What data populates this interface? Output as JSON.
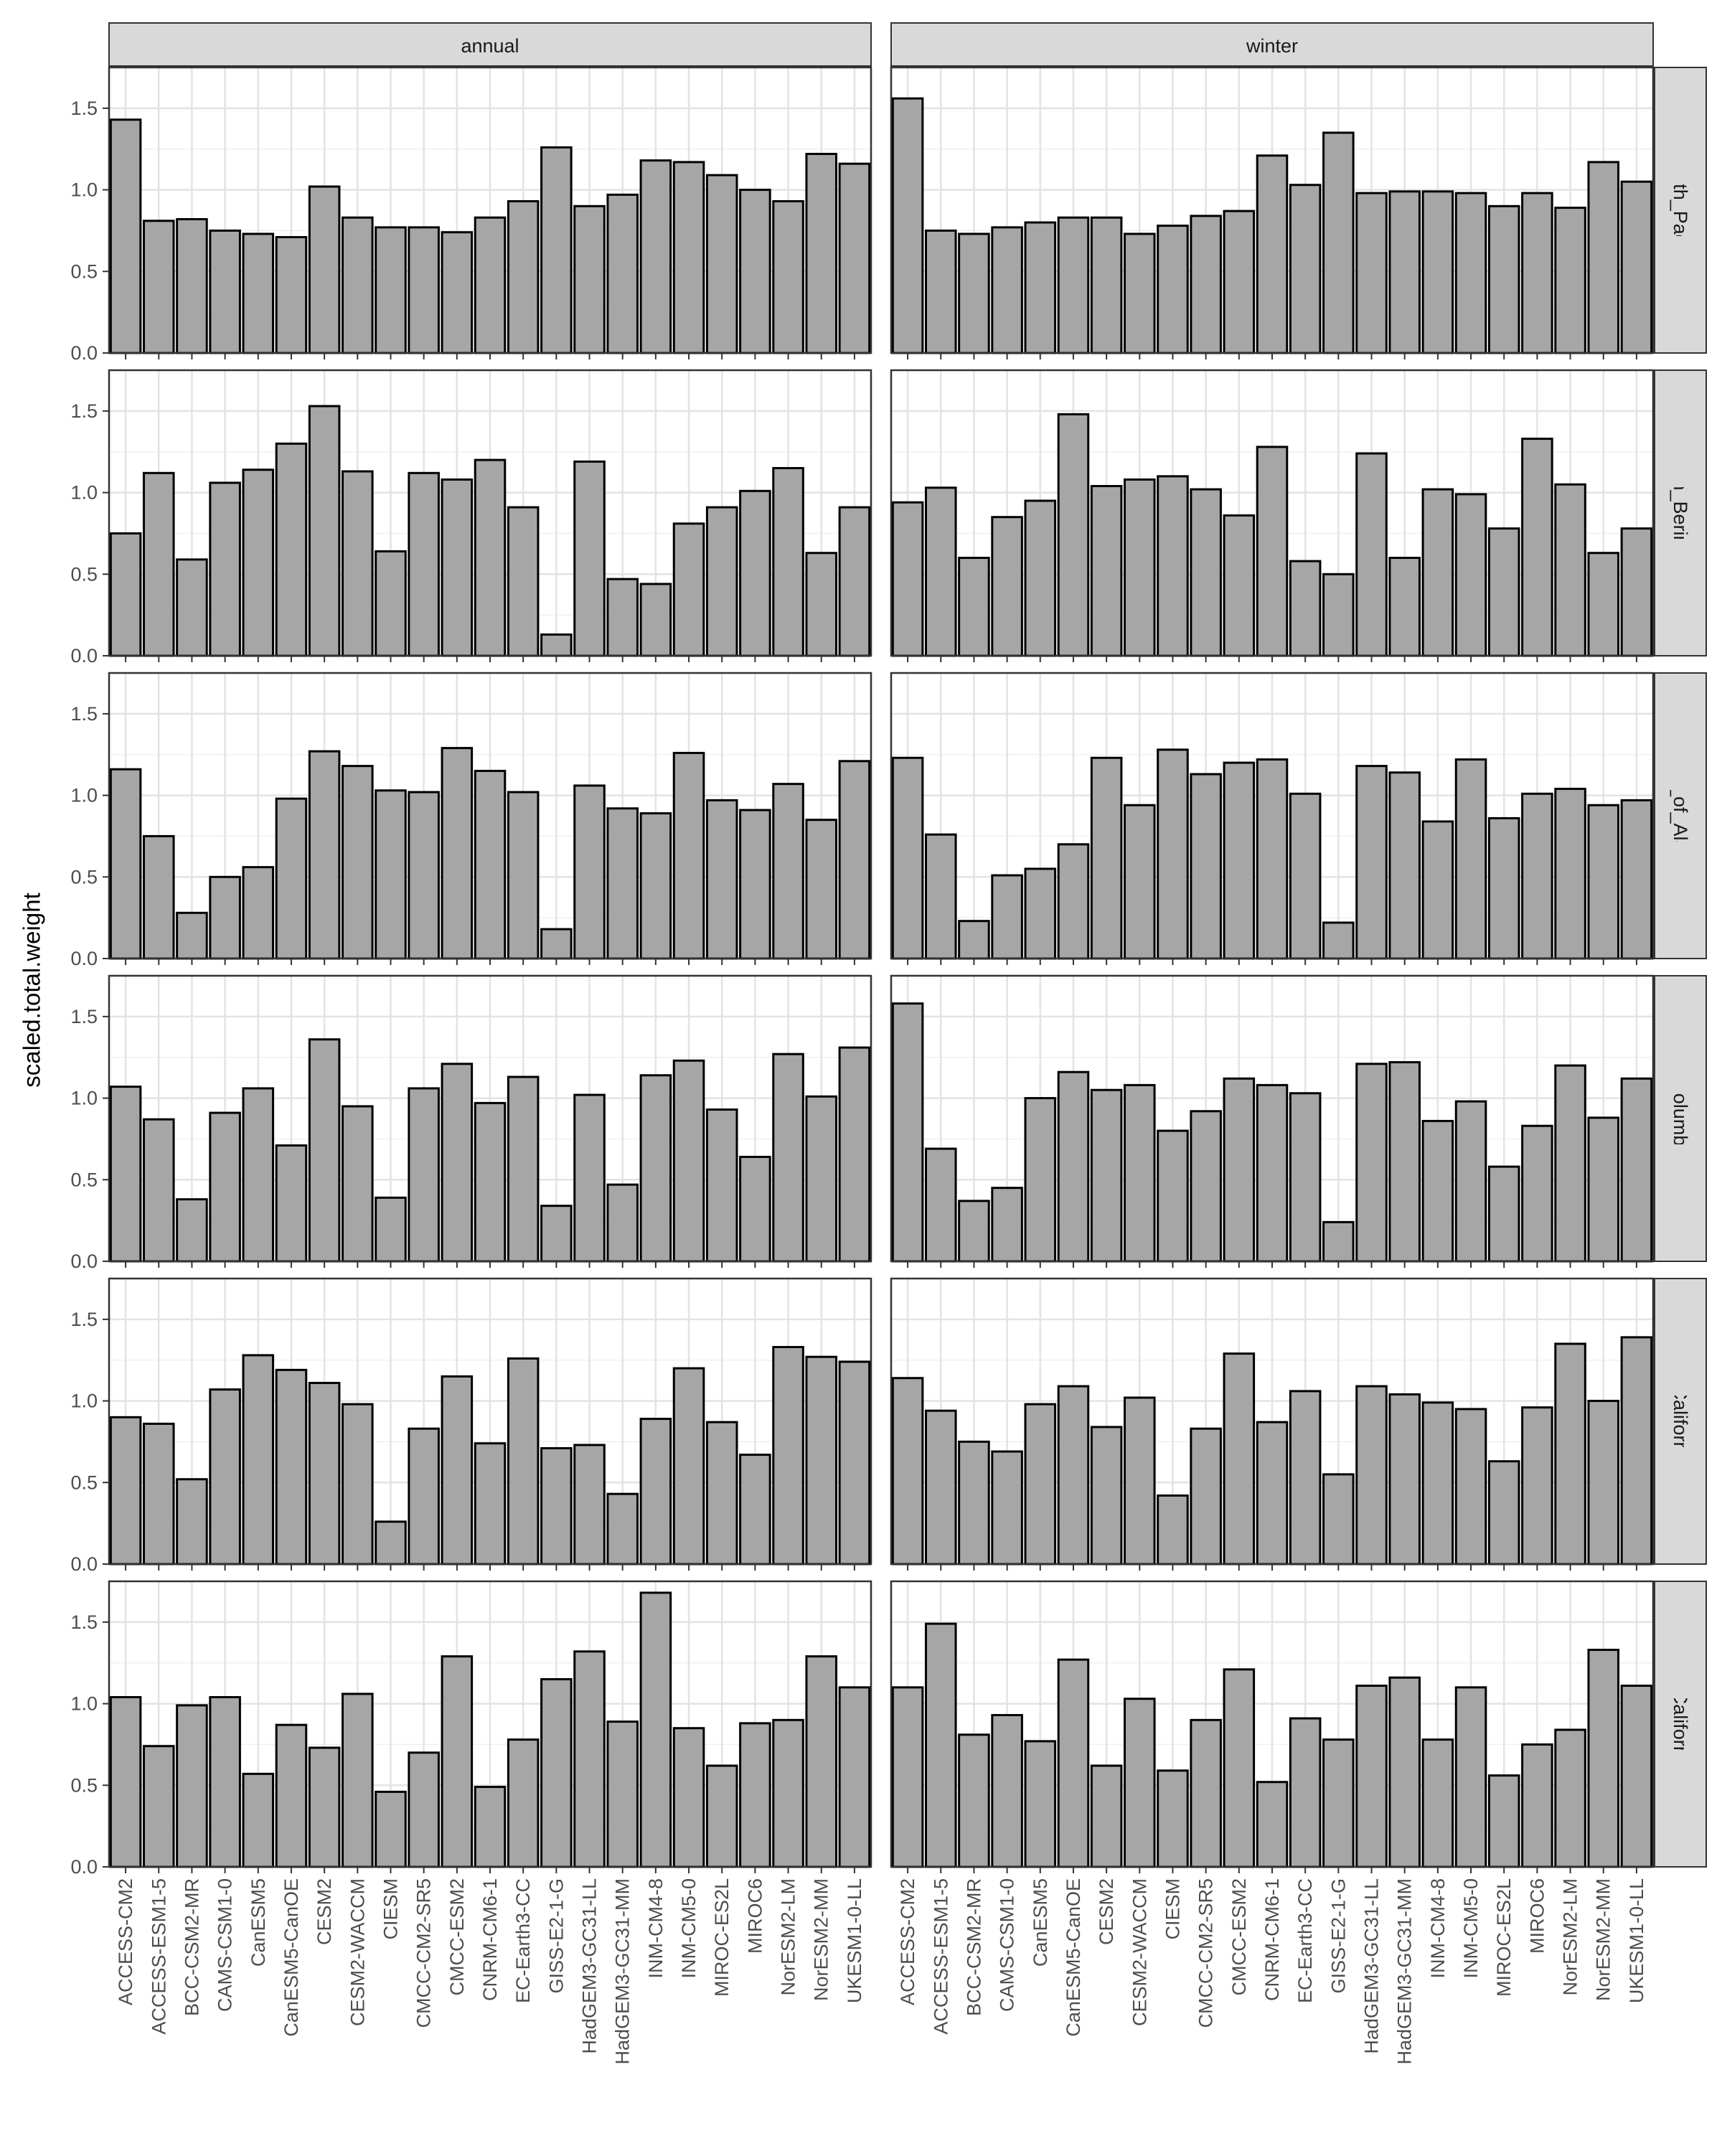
{
  "chart_data": {
    "type": "bar",
    "ylabel": "scaled.total.weight",
    "xlabel": "",
    "ylim": [
      0,
      1.75
    ],
    "yticks": [
      0.0,
      0.5,
      1.0,
      1.5
    ],
    "ytick_labels": [
      "0.0",
      "0.5",
      "1.0",
      "1.5"
    ],
    "grid": true,
    "bar_fill": "#a6a6a6",
    "bar_stroke": "#000000",
    "strip_fill": "#d9d9d9",
    "columns": [
      "annual",
      "winter"
    ],
    "rows": [
      "North_Pacific",
      "Eastern_Bering_Sea",
      "Gulf_of_Alaska",
      "British_Columbia_Coast",
      "Northern_California_Current",
      "Southern_California_Current"
    ],
    "categories": [
      "ACCESS-CM2",
      "ACCESS-ESM1-5",
      "BCC-CSM2-MR",
      "CAMS-CSM1-0",
      "CanESM5",
      "CanESM5-CanOE",
      "CESM2",
      "CESM2-WACCM",
      "CIESM",
      "CMCC-CM2-SR5",
      "CMCC-ESM2",
      "CNRM-CM6-1",
      "EC-Earth3-CC",
      "GISS-E2-1-G",
      "HadGEM3-GC31-LL",
      "HadGEM3-GC31-MM",
      "INM-CM4-8",
      "INM-CM5-0",
      "MIROC-ES2L",
      "MIROC6",
      "NorESM2-LM",
      "NorESM2-MM",
      "UKESM1-0-LL"
    ],
    "values": {
      "annual": [
        [
          1.43,
          0.81,
          0.82,
          0.75,
          0.73,
          0.71,
          1.02,
          0.83,
          0.77,
          0.77,
          0.74,
          0.83,
          0.93,
          1.26,
          0.9,
          0.97,
          1.18,
          1.17,
          1.09,
          1.0,
          0.93,
          1.22,
          1.16
        ],
        [
          0.75,
          1.12,
          0.59,
          1.06,
          1.14,
          1.3,
          1.53,
          1.13,
          0.64,
          1.12,
          1.08,
          1.2,
          0.91,
          0.13,
          1.19,
          0.47,
          0.44,
          0.81,
          0.91,
          1.01,
          1.15,
          0.63,
          0.91
        ],
        [
          1.16,
          0.75,
          0.28,
          0.5,
          0.56,
          0.98,
          1.27,
          1.18,
          1.03,
          1.02,
          1.29,
          1.15,
          1.02,
          0.18,
          1.06,
          0.92,
          0.89,
          1.26,
          0.97,
          0.91,
          1.07,
          0.85,
          1.21
        ],
        [
          1.07,
          0.87,
          0.38,
          0.91,
          1.06,
          0.71,
          1.36,
          0.95,
          0.39,
          1.06,
          1.21,
          0.97,
          1.13,
          0.34,
          1.02,
          0.47,
          1.14,
          1.23,
          0.93,
          0.64,
          1.27,
          1.01,
          1.31
        ],
        [
          0.9,
          0.86,
          0.52,
          1.07,
          1.28,
          1.19,
          1.11,
          0.98,
          0.26,
          0.83,
          1.15,
          0.74,
          1.26,
          0.71,
          0.73,
          0.43,
          0.89,
          1.2,
          0.87,
          0.67,
          1.33,
          1.27,
          1.24
        ],
        [
          1.04,
          0.74,
          0.99,
          1.04,
          0.57,
          0.87,
          0.73,
          1.06,
          0.46,
          0.7,
          1.29,
          0.49,
          0.78,
          1.15,
          1.32,
          0.89,
          1.68,
          0.85,
          0.62,
          0.88,
          0.9,
          1.29,
          1.1
        ]
      ],
      "winter": [
        [
          1.56,
          0.75,
          0.73,
          0.77,
          0.8,
          0.83,
          0.83,
          0.73,
          0.78,
          0.84,
          0.87,
          1.21,
          1.03,
          1.35,
          0.98,
          0.99,
          0.99,
          0.98,
          0.9,
          0.98,
          0.89,
          1.17,
          1.05
        ],
        [
          0.94,
          1.03,
          0.6,
          0.85,
          0.95,
          1.48,
          1.04,
          1.08,
          1.1,
          1.02,
          0.86,
          1.28,
          0.58,
          0.5,
          1.24,
          0.6,
          1.02,
          0.99,
          0.78,
          1.33,
          1.05,
          0.63,
          0.78
        ],
        [
          1.23,
          0.76,
          0.23,
          0.51,
          0.55,
          0.7,
          1.23,
          0.94,
          1.28,
          1.13,
          1.2,
          1.22,
          1.01,
          0.22,
          1.18,
          1.14,
          0.84,
          1.22,
          0.86,
          1.01,
          1.04,
          0.94,
          0.97
        ],
        [
          1.58,
          0.69,
          0.37,
          0.45,
          1.0,
          1.16,
          1.05,
          1.08,
          0.8,
          0.92,
          1.12,
          1.08,
          1.03,
          0.24,
          1.21,
          1.22,
          0.86,
          0.98,
          0.58,
          0.83,
          1.2,
          0.88,
          1.12
        ],
        [
          1.14,
          0.94,
          0.75,
          0.69,
          0.98,
          1.09,
          0.84,
          1.02,
          0.42,
          0.83,
          1.29,
          0.87,
          1.06,
          0.55,
          1.09,
          1.04,
          0.99,
          0.95,
          0.63,
          0.96,
          1.35,
          1.0,
          1.39
        ],
        [
          1.1,
          1.49,
          0.81,
          0.93,
          0.77,
          1.27,
          0.62,
          1.03,
          0.59,
          0.9,
          1.21,
          0.52,
          0.91,
          0.78,
          1.11,
          1.16,
          0.78,
          1.1,
          0.56,
          0.75,
          0.84,
          1.33,
          1.11
        ]
      ]
    }
  }
}
